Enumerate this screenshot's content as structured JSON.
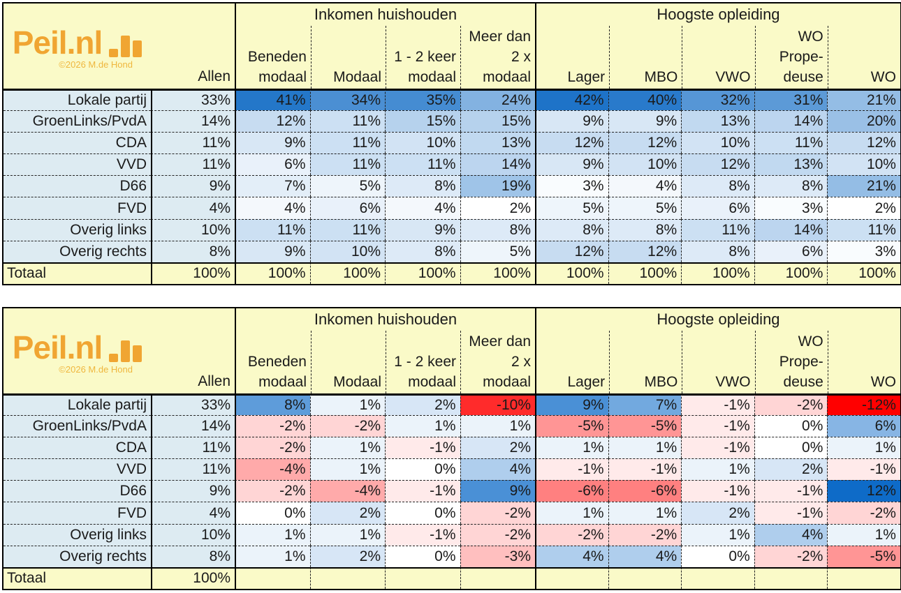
{
  "logo": {
    "brand": "Peil.nl",
    "copyright": "©2026 M.de Hond"
  },
  "labels": {
    "allen": "Allen",
    "totaal": "Totaal"
  },
  "groups": [
    {
      "title": "Inkomen huishouden",
      "columns": [
        [
          "Beneden",
          "modaal"
        ],
        [
          "Modaal"
        ],
        [
          "1 - 2 keer",
          "modaal"
        ],
        [
          "Meer dan",
          "2 x",
          "modaal"
        ]
      ]
    },
    {
      "title": "Hoogste opleiding",
      "columns": [
        [
          "Lager"
        ],
        [
          "MBO"
        ],
        [
          "VWO"
        ],
        [
          "WO",
          "Prope-",
          "deuse"
        ],
        [
          "WO"
        ]
      ]
    }
  ],
  "parties": [
    "Lokale partij",
    "GroenLinks/PvdA",
    "CDA",
    "VVD",
    "D66",
    "FVD",
    "Overig links",
    "Overig rechts"
  ],
  "chart_data": [
    {
      "type": "table",
      "allen": [
        33,
        14,
        11,
        11,
        9,
        4,
        10,
        8
      ],
      "rows": [
        [
          41,
          34,
          35,
          24,
          42,
          40,
          32,
          31,
          21
        ],
        [
          12,
          11,
          15,
          15,
          9,
          9,
          13,
          14,
          20
        ],
        [
          9,
          11,
          10,
          13,
          12,
          12,
          10,
          11,
          12
        ],
        [
          6,
          11,
          11,
          14,
          9,
          10,
          12,
          13,
          10
        ],
        [
          7,
          5,
          8,
          19,
          3,
          4,
          8,
          8,
          21
        ],
        [
          4,
          6,
          4,
          2,
          5,
          5,
          6,
          3,
          2
        ],
        [
          11,
          11,
          9,
          8,
          8,
          8,
          11,
          14,
          11
        ],
        [
          9,
          10,
          8,
          5,
          12,
          12,
          8,
          6,
          3
        ]
      ],
      "totaal": [
        100,
        100,
        100,
        100,
        100,
        100,
        100,
        100,
        100,
        100
      ],
      "scale": {
        "min": 2,
        "max": 42,
        "min_color": "#FFFFFF",
        "max_color": "#1E73C8"
      }
    },
    {
      "type": "table",
      "allen": [
        33,
        14,
        11,
        11,
        9,
        4,
        10,
        8
      ],
      "rows": [
        [
          8,
          1,
          2,
          -10,
          9,
          7,
          -1,
          -2,
          -12
        ],
        [
          -2,
          -2,
          1,
          1,
          -5,
          -5,
          -1,
          0,
          6
        ],
        [
          -2,
          1,
          -1,
          2,
          1,
          1,
          -1,
          0,
          1
        ],
        [
          -4,
          1,
          0,
          4,
          -1,
          -1,
          1,
          2,
          -1
        ],
        [
          -2,
          -4,
          -1,
          9,
          -6,
          -6,
          -1,
          -1,
          12
        ],
        [
          0,
          2,
          0,
          -2,
          1,
          1,
          2,
          -1,
          -2
        ],
        [
          1,
          1,
          -1,
          -2,
          -2,
          -2,
          1,
          4,
          1
        ],
        [
          1,
          2,
          0,
          -3,
          4,
          4,
          0,
          -2,
          -5
        ]
      ],
      "totaal_allen": 100,
      "scale": {
        "min": -12,
        "mid": 0,
        "max": 12,
        "min_color": "#FF0000",
        "mid_color": "#FFFFFF",
        "max_color": "#0E6BC8"
      }
    }
  ],
  "colors": {
    "header_yellow": "#FAFAC8",
    "pale_blue": "#DDEBF2",
    "border": "#000000",
    "dashed_grid": "#222222",
    "text": "#1A1A1A",
    "logo_orange": "#F0A532",
    "copyright_orange": "#EFB73E"
  }
}
